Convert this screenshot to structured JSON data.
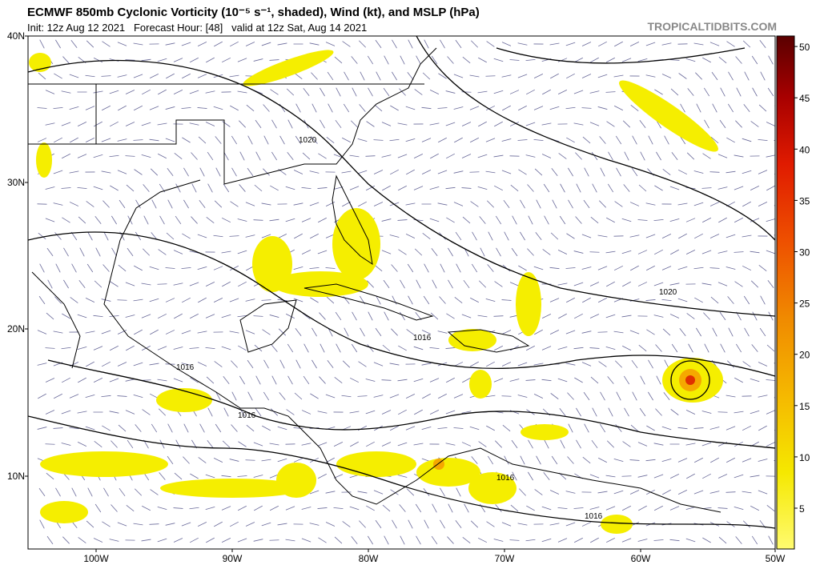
{
  "header": {
    "title": "ECMWF 850mb Cyclonic Vorticity (10⁻⁵ s⁻¹, shaded), Wind (kt), and MSLP (hPa)",
    "subtitle": "Init: 12z Aug 12 2021   Forecast Hour: [48]   valid at 12z Sat, Aug 14 2021",
    "watermark": "TROPICALTIDBITS.COM"
  },
  "map": {
    "latitude_labels": [
      "40N",
      "30N",
      "20N",
      "10N"
    ],
    "longitude_labels": [
      "100W",
      "90W",
      "80W",
      "70W",
      "60W",
      "50W"
    ],
    "contour_labels": [
      "1020",
      "1020",
      "1016",
      "1016",
      "1016",
      "1016",
      "1016"
    ]
  },
  "colorbar": {
    "ticks": [
      5,
      10,
      15,
      20,
      25,
      30,
      35,
      40,
      45,
      50
    ]
  }
}
